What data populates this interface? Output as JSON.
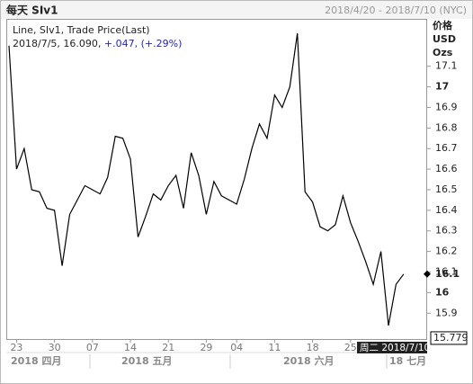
{
  "header": {
    "title": "每天 SIv1",
    "range": "2018/4/20 - 2018/7/10 (NYC)"
  },
  "legend": {
    "series_label": "Line, SIv1, Trade Price(Last)",
    "date": "2018/7/5,",
    "price": "16.090,",
    "change": "+.047,",
    "pct": "(+.29%)"
  },
  "axis_header": [
    "价格",
    "USD",
    "Ozs"
  ],
  "chart_data": {
    "type": "line",
    "color": "#000000",
    "categories": [
      null,
      "23",
      null,
      null,
      null,
      null,
      "30",
      null,
      null,
      null,
      null,
      "07",
      null,
      null,
      null,
      null,
      "14",
      null,
      null,
      null,
      null,
      "21",
      null,
      null,
      null,
      null,
      "29",
      null,
      null,
      null,
      "04",
      null,
      null,
      null,
      null,
      "11",
      null,
      null,
      null,
      null,
      "18",
      null,
      null,
      null,
      null,
      "25",
      null,
      null,
      null,
      null,
      null,
      null,
      null
    ],
    "values": [
      17.2,
      16.6,
      16.7,
      16.5,
      16.49,
      16.41,
      16.4,
      16.13,
      16.38,
      16.45,
      16.52,
      16.5,
      16.48,
      16.56,
      16.76,
      16.75,
      16.65,
      16.27,
      16.37,
      16.48,
      16.45,
      16.52,
      16.57,
      16.41,
      16.68,
      16.57,
      16.38,
      16.54,
      16.47,
      16.45,
      16.43,
      16.55,
      16.7,
      16.82,
      16.75,
      16.96,
      16.9,
      17.0,
      17.26,
      16.49,
      16.44,
      16.32,
      16.3,
      16.33,
      16.47,
      16.34,
      16.25,
      16.15,
      16.04,
      16.2,
      15.84,
      16.04,
      16.09
    ],
    "months": [
      "2018 四月",
      "2018 五月",
      "2018 六月",
      "18 七月"
    ],
    "ylim": [
      15.77,
      17.326
    ],
    "yticks": [
      17.1,
      17,
      16.9,
      16.8,
      16.7,
      16.6,
      16.5,
      16.4,
      16.3,
      16.2,
      16.1,
      16,
      15.9
    ],
    "last": {
      "value": 16.09,
      "label": "16.1"
    },
    "crosshair": {
      "value": 15.779,
      "label": "15.779",
      "date_label": "周二 2018/7/10"
    }
  }
}
